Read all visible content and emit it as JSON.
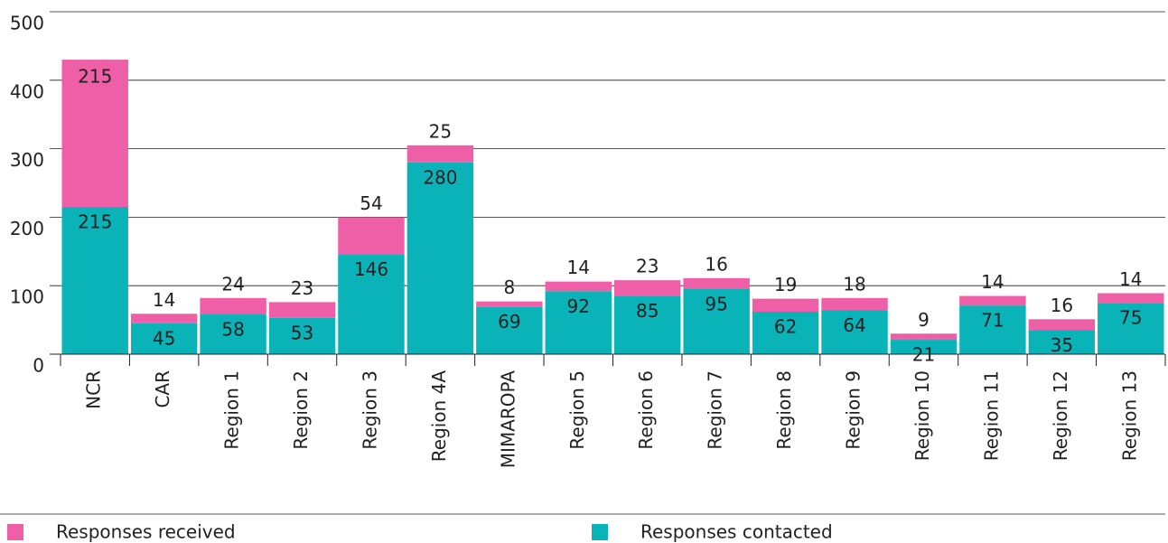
{
  "chart_data": {
    "type": "stacked_bar",
    "categories": [
      "NCR",
      "CAR",
      "Region 1",
      "Region 2",
      "Region 3",
      "Region 4A",
      "MIMAROPA",
      "Region 5",
      "Region 6",
      "Region 7",
      "Region 8",
      "Region 9",
      "Region 10",
      "Region 11",
      "Region 12",
      "Region 13"
    ],
    "series": [
      {
        "name": "Responses contacted",
        "color": "#0ab3b8",
        "values": [
          215,
          45,
          58,
          53,
          146,
          280,
          69,
          92,
          85,
          95,
          62,
          64,
          21,
          71,
          35,
          75
        ]
      },
      {
        "name": "Responses received",
        "color": "#ef5fa7",
        "values": [
          215,
          14,
          24,
          23,
          54,
          25,
          8,
          14,
          23,
          16,
          19,
          18,
          9,
          14,
          16,
          14
        ]
      }
    ],
    "ylim": [
      0,
      500
    ],
    "yticks": [
      0,
      100,
      200,
      300,
      400,
      500
    ],
    "grid": true,
    "legend": "bottom"
  }
}
